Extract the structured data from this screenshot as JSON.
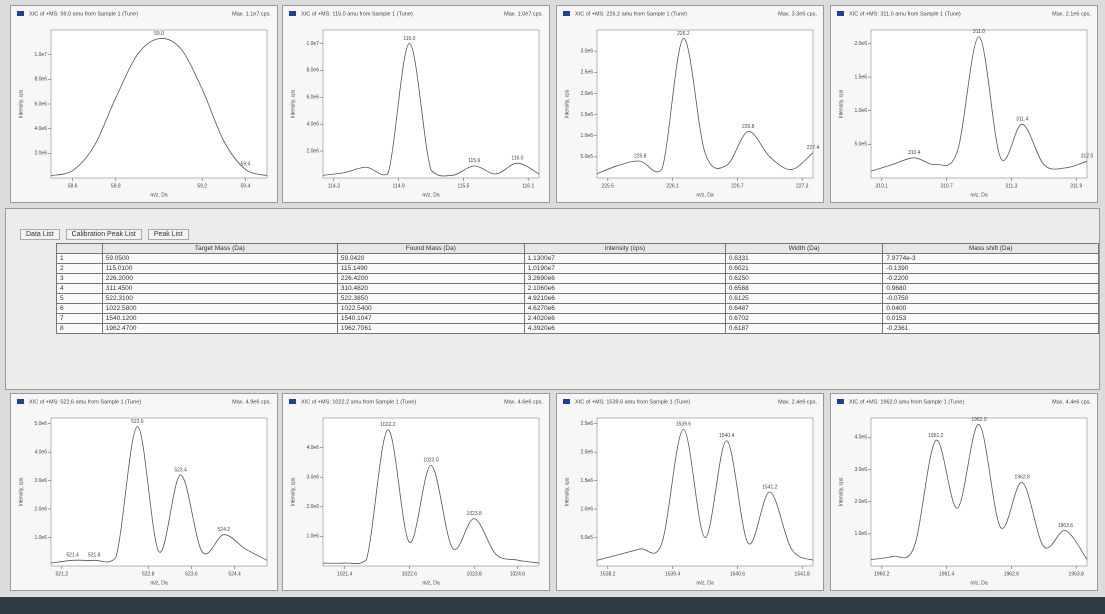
{
  "chart_data": [
    {
      "type": "line",
      "title": "XIC of +MS: 59.0 amu from Sample 1 (Tune)",
      "max_label": "Max. 1.1e7 cps.",
      "xlabel": "m/z, Da",
      "ylabel": "Intensity, cps",
      "color": "#555555",
      "x": [
        58.5,
        58.6,
        58.7,
        58.8,
        58.9,
        59.0,
        59.1,
        59.2,
        59.3,
        59.4,
        59.5
      ],
      "values": [
        200000.0,
        600000.0,
        2600000.0,
        6500000.0,
        10000000.0,
        11300000.0,
        10500000.0,
        7200000.0,
        3000000.0,
        700000.0,
        200000.0
      ],
      "xlim": [
        58.5,
        59.5
      ],
      "ylim": [
        0,
        12000000.0
      ],
      "xticks": [
        58.6,
        58.8,
        59.2,
        59.4
      ],
      "yticks": [
        {
          "value": 2000000.0,
          "label": "2.0e6"
        },
        {
          "value": 4000000.0,
          "label": "4.0e6"
        },
        {
          "value": 6000000.0,
          "label": "6.0e6"
        },
        {
          "value": 8000000.0,
          "label": "8.0e6"
        },
        {
          "value": 10000000.0,
          "label": "1.0e7"
        }
      ],
      "peak_labels": [
        {
          "x": 59,
          "label": "59.0"
        },
        {
          "x": 59.4,
          "label": "59.4"
        }
      ]
    },
    {
      "type": "line",
      "title": "XIC of +MS: 115.0 amu from Sample 1 (Tune)",
      "max_label": "Max. 1.0e7 cps.",
      "xlabel": "m/z, Da",
      "ylabel": "Intensity, cps",
      "color": "#555555",
      "x": [
        114.2,
        114.4,
        114.6,
        114.8,
        115.0,
        115.2,
        115.4,
        115.6,
        115.8,
        116.0,
        116.2
      ],
      "values": [
        200000.0,
        400000.0,
        800000.0,
        300000.0,
        10000000.0,
        600000.0,
        200000.0,
        900000.0,
        300000.0,
        1100000.0,
        300000.0
      ],
      "xlim": [
        114.2,
        116.2
      ],
      "ylim": [
        0,
        11000000.0
      ],
      "xticks": [
        114.3,
        114.9,
        115.5,
        116.1
      ],
      "yticks": [
        {
          "value": 2000000.0,
          "label": "2.0e6"
        },
        {
          "value": 4000000.0,
          "label": "4.0e6"
        },
        {
          "value": 6000000.0,
          "label": "6.0e6"
        },
        {
          "value": 8000000.0,
          "label": "8.0e6"
        },
        {
          "value": 10000000.0,
          "label": "1.0e7"
        }
      ],
      "peak_labels": [
        {
          "x": 115,
          "label": "115.0"
        },
        {
          "x": 115.6,
          "label": "115.6"
        },
        {
          "x": 116,
          "label": "116.0"
        }
      ]
    },
    {
      "type": "line",
      "title": "XIC of +MS: 226.2 amu from Sample 1 (Tune)",
      "max_label": "Max. 3.3e6 cps.",
      "xlabel": "m/z, Da",
      "ylabel": "Intensity, cps",
      "color": "#555555",
      "x": [
        225.4,
        225.6,
        225.8,
        226.0,
        226.2,
        226.4,
        226.6,
        226.8,
        227.0,
        227.2,
        227.4
      ],
      "values": [
        100000.0,
        300000.0,
        400000.0,
        200000.0,
        3300000.0,
        600000.0,
        300000.0,
        1100000.0,
        500000.0,
        200000.0,
        600000.0
      ],
      "xlim": [
        225.4,
        227.4
      ],
      "ylim": [
        0,
        3500000.0
      ],
      "xticks": [
        225.5,
        226.1,
        226.7,
        227.3
      ],
      "yticks": [
        {
          "value": 500000.0,
          "label": "5.0e5"
        },
        {
          "value": 1000000.0,
          "label": "1.0e6"
        },
        {
          "value": 1500000.0,
          "label": "1.5e6"
        },
        {
          "value": 2000000.0,
          "label": "2.0e6"
        },
        {
          "value": 2500000.0,
          "label": "2.5e6"
        },
        {
          "value": 3000000.0,
          "label": "3.0e6"
        }
      ],
      "peak_labels": [
        {
          "x": 225.8,
          "label": "225.8"
        },
        {
          "x": 226.2,
          "label": "226.2"
        },
        {
          "x": 226.8,
          "label": "226.8"
        },
        {
          "x": 227.4,
          "label": "227.4"
        }
      ]
    },
    {
      "type": "line",
      "title": "XIC of +MS: 311.0 amu from Sample 1 (Tune)",
      "max_label": "Max. 2.1e6 cps.",
      "xlabel": "m/z, Da",
      "ylabel": "Intensity, cps",
      "color": "#555555",
      "x": [
        310.0,
        310.2,
        310.4,
        310.6,
        310.8,
        311.0,
        311.2,
        311.4,
        311.6,
        311.8,
        312.0
      ],
      "values": [
        100000.0,
        200000.0,
        300000.0,
        200000.0,
        400000.0,
        2100000.0,
        300000.0,
        800000.0,
        200000.0,
        150000.0,
        250000.0
      ],
      "xlim": [
        310.0,
        312.0
      ],
      "ylim": [
        0,
        2200000.0
      ],
      "xticks": [
        310.1,
        310.7,
        311.3,
        311.9
      ],
      "yticks": [
        {
          "value": 500000.0,
          "label": "5.0e5"
        },
        {
          "value": 1000000.0,
          "label": "1.0e6"
        },
        {
          "value": 1500000.0,
          "label": "1.5e6"
        },
        {
          "value": 2000000.0,
          "label": "2.0e6"
        }
      ],
      "peak_labels": [
        {
          "x": 310.4,
          "label": "310.4"
        },
        {
          "x": 311,
          "label": "311.0"
        },
        {
          "x": 311.4,
          "label": "311.4"
        },
        {
          "x": 312,
          "label": "312.0"
        }
      ]
    },
    {
      "type": "line",
      "title": "XIC of +MS: 522.6 amu from Sample 1 (Tune)",
      "max_label": "Max. 4.9e6 cps.",
      "xlabel": "m/z, Da",
      "ylabel": "Intensity, cps",
      "color": "#555555",
      "x": [
        521.0,
        521.4,
        521.8,
        522.2,
        522.6,
        523.0,
        523.4,
        523.8,
        524.2,
        524.6,
        525.0
      ],
      "values": [
        100000.0,
        200000.0,
        200000.0,
        300000.0,
        4900000.0,
        500000.0,
        3200000.0,
        500000.0,
        1100000.0,
        600000.0,
        200000.0
      ],
      "xlim": [
        521.0,
        525.0
      ],
      "ylim": [
        0,
        5200000.0
      ],
      "xticks": [
        521.2,
        522.8,
        523.6,
        524.4
      ],
      "yticks": [
        {
          "value": 1000000.0,
          "label": "1.0e6"
        },
        {
          "value": 2000000.0,
          "label": "2.0e6"
        },
        {
          "value": 3000000.0,
          "label": "3.0e6"
        },
        {
          "value": 4000000.0,
          "label": "4.0e6"
        },
        {
          "value": 5000000.0,
          "label": "5.0e6"
        }
      ],
      "peak_labels": [
        {
          "x": 521.4,
          "label": "521.4"
        },
        {
          "x": 521.8,
          "label": "521.8"
        },
        {
          "x": 522.6,
          "label": "522.6"
        },
        {
          "x": 523.4,
          "label": "523.4"
        },
        {
          "x": 524.2,
          "label": "524.2"
        }
      ]
    },
    {
      "type": "line",
      "title": "XIC of +MS: 1022.2 amu from Sample 1 (Tune)",
      "max_label": "Max. 4.6e6 cps.",
      "xlabel": "m/z, Da",
      "ylabel": "Intensity, cps",
      "color": "#555555",
      "x": [
        1021.0,
        1021.4,
        1021.8,
        1022.2,
        1022.6,
        1023.0,
        1023.4,
        1023.8,
        1024.2,
        1024.6,
        1025.0
      ],
      "values": [
        100000.0,
        100000.0,
        200000.0,
        4600000.0,
        800000.0,
        3400000.0,
        600000.0,
        1600000.0,
        400000.0,
        200000.0,
        100000.0
      ],
      "xlim": [
        1021.0,
        1025.0
      ],
      "ylim": [
        0,
        5000000.0
      ],
      "xticks": [
        1021.4,
        1022.6,
        1023.8,
        1024.6
      ],
      "yticks": [
        {
          "value": 1000000.0,
          "label": "1.0e6"
        },
        {
          "value": 2000000.0,
          "label": "2.0e6"
        },
        {
          "value": 3000000.0,
          "label": "3.0e6"
        },
        {
          "value": 4000000.0,
          "label": "4.0e6"
        }
      ],
      "peak_labels": [
        {
          "x": 1022.2,
          "label": "1022.2"
        },
        {
          "x": 1023,
          "label": "1023.0"
        },
        {
          "x": 1023.8,
          "label": "1023.8"
        }
      ]
    },
    {
      "type": "line",
      "title": "XIC of +MS: 1539.6 amu from Sample 1 (Tune)",
      "max_label": "Max. 2.4e6 cps.",
      "xlabel": "m/z, Da",
      "ylabel": "Intensity, cps",
      "color": "#555555",
      "x": [
        1538.0,
        1538.4,
        1538.8,
        1539.2,
        1539.6,
        1540.0,
        1540.4,
        1540.8,
        1541.2,
        1541.6,
        1542.0
      ],
      "values": [
        100000.0,
        200000.0,
        300000.0,
        400000.0,
        2400000.0,
        500000.0,
        2200000.0,
        400000.0,
        1300000.0,
        300000.0,
        100000.0
      ],
      "xlim": [
        1538.0,
        1542.0
      ],
      "ylim": [
        0,
        2600000.0
      ],
      "xticks": [
        1538.2,
        1539.4,
        1540.6,
        1541.8
      ],
      "yticks": [
        {
          "value": 500000.0,
          "label": "5.0e5"
        },
        {
          "value": 1000000.0,
          "label": "1.0e6"
        },
        {
          "value": 1500000.0,
          "label": "1.5e6"
        },
        {
          "value": 2000000.0,
          "label": "2.0e6"
        },
        {
          "value": 2500000.0,
          "label": "2.5e6"
        }
      ],
      "peak_labels": [
        {
          "x": 1539.6,
          "label": "1539.6"
        },
        {
          "x": 1540.4,
          "label": "1540.4"
        },
        {
          "x": 1541.2,
          "label": "1541.2"
        }
      ]
    },
    {
      "type": "line",
      "title": "XIC of +MS: 1962.0 amu from Sample 1 (Tune)",
      "max_label": "Max. 4.4e6 cps.",
      "xlabel": "m/z, Da",
      "ylabel": "Intensity, cps",
      "color": "#555555",
      "x": [
        1960.0,
        1960.4,
        1960.8,
        1961.2,
        1961.6,
        1962.0,
        1962.4,
        1962.8,
        1963.2,
        1963.6,
        1964.0
      ],
      "values": [
        200000.0,
        300000.0,
        600000.0,
        3900000.0,
        1800000.0,
        4400000.0,
        1200000.0,
        2600000.0,
        600000.0,
        1100000.0,
        200000.0
      ],
      "xlim": [
        1960.0,
        1964.0
      ],
      "ylim": [
        0,
        4600000.0
      ],
      "xticks": [
        1960.2,
        1961.4,
        1962.6,
        1963.8
      ],
      "yticks": [
        {
          "value": 1000000.0,
          "label": "1.0e6"
        },
        {
          "value": 2000000.0,
          "label": "2.0e6"
        },
        {
          "value": 3000000.0,
          "label": "3.0e6"
        },
        {
          "value": 4000000.0,
          "label": "4.0e6"
        }
      ],
      "peak_labels": [
        {
          "x": 1961.2,
          "label": "1961.2"
        },
        {
          "x": 1962,
          "label": "1962.0"
        },
        {
          "x": 1962.8,
          "label": "1962.8"
        },
        {
          "x": 1963.6,
          "label": "1963.6"
        }
      ]
    }
  ],
  "tabs": [
    "Data List",
    "Calibration Peak List",
    "Peak List"
  ],
  "table": {
    "columns": [
      "Target Mass (Da)",
      "Found Mass (Da)",
      "Intensity (cps)",
      "Width (Da)",
      "Mass shift (Da)"
    ],
    "rows": [
      [
        "1",
        "59.0500",
        "59.0420",
        "1.1300e7",
        "0.6331",
        "7.9774e-3"
      ],
      [
        "2",
        "115.0100",
        "115.1490",
        "1.0190e7",
        "0.6021",
        "-0.1390"
      ],
      [
        "3",
        "226.2000",
        "226.4200",
        "3.2690e6",
        "0.6250",
        "-0.2200"
      ],
      [
        "4",
        "311.4500",
        "310.4820",
        "2.1060e6",
        "0.6568",
        "0.9680"
      ],
      [
        "5",
        "522.3100",
        "522.3850",
        "4.9210e6",
        "0.6125",
        "-0.0750"
      ],
      [
        "6",
        "1022.5800",
        "1022.5400",
        "4.6270e6",
        "0.6487",
        "0.0400"
      ],
      [
        "7",
        "1540.1200",
        "1540.1047",
        "2.4020e6",
        "0.6702",
        "0.0153"
      ],
      [
        "8",
        "1962.4700",
        "1962.7061",
        "4.3920e6",
        "0.6187",
        "-0.2361"
      ]
    ]
  }
}
